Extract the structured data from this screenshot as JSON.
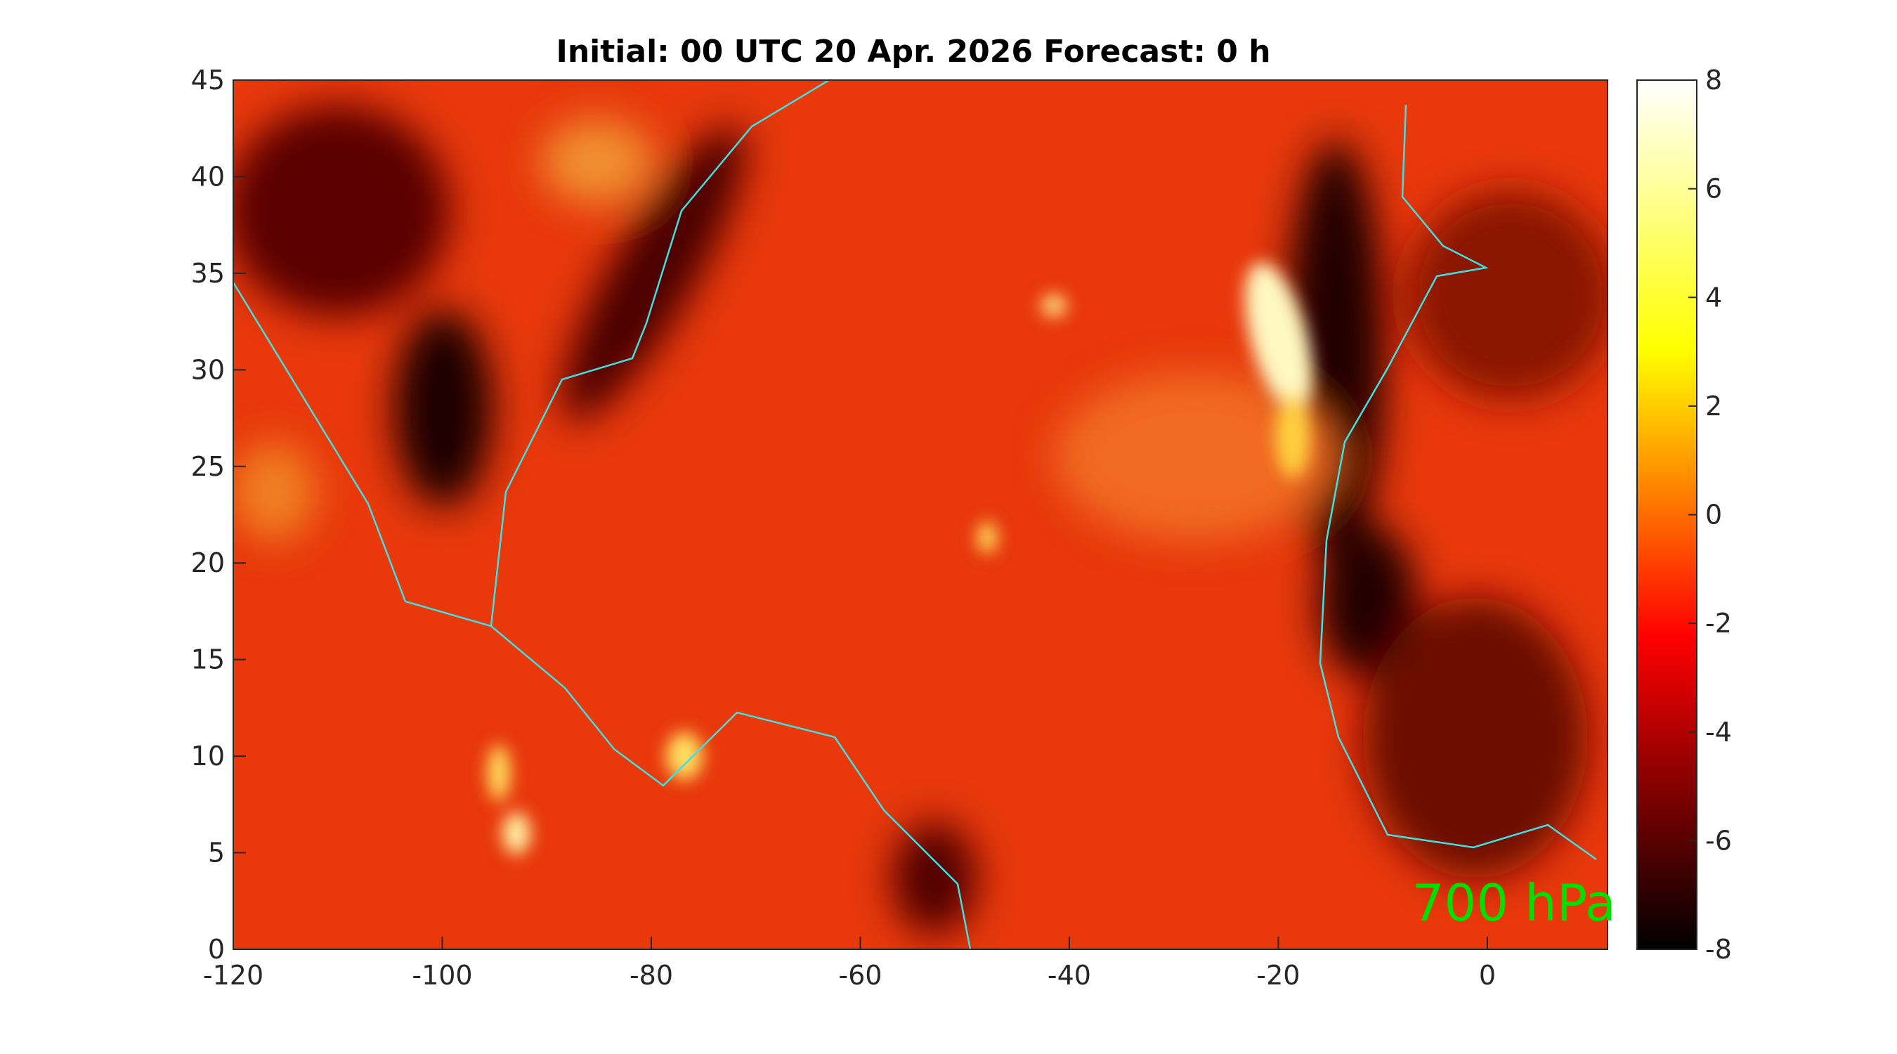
{
  "chart_data": {
    "type": "heatmap",
    "title": "Initial: 00 UTC 20 Apr. 2026 Forecast: 0 h",
    "annotation": "700 hPa",
    "xlim": [
      -120,
      11.5
    ],
    "xticks": [
      -120,
      -100,
      -80,
      -60,
      -40,
      -20,
      0
    ],
    "ylim": [
      0,
      45
    ],
    "yticks": [
      0,
      5,
      10,
      15,
      20,
      25,
      30,
      35,
      40,
      45
    ],
    "clim": [
      -8,
      8
    ],
    "cticks": [
      -8,
      -6,
      -4,
      -2,
      0,
      2,
      4,
      6,
      8
    ]
  }
}
